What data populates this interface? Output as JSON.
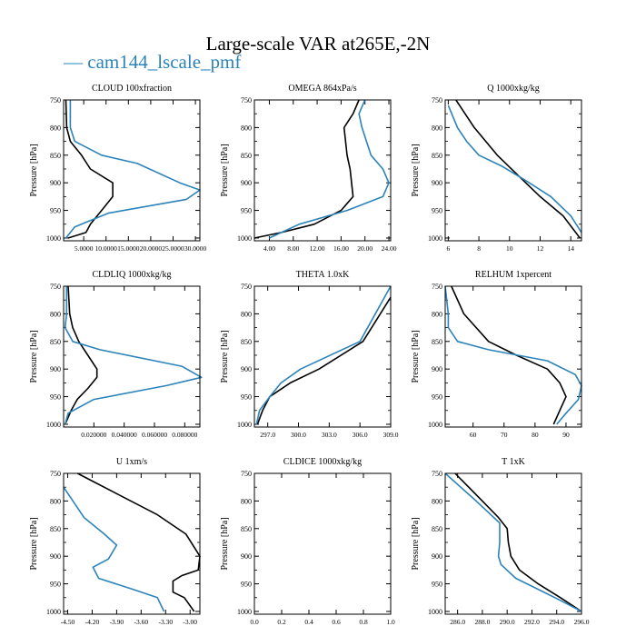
{
  "title": "Large-scale VAR at265E,-2N",
  "legend": {
    "dash": "—",
    "label": "cam144_lscale_pmf"
  },
  "colors": {
    "black_series": "#000000",
    "blue_series": "#2b83ba"
  },
  "chart_data": [
    {
      "type": "line",
      "title": "CLOUD  100xfraction",
      "ylabel": "Pressure [hPa]",
      "yticks": [
        750,
        800,
        850,
        900,
        950,
        1000
      ],
      "ylim": [
        750,
        1005
      ],
      "xlim": [
        0.5,
        31
      ],
      "xticks": [
        5,
        10,
        15,
        20,
        25,
        30
      ],
      "xticklabels": [
        "5.0000",
        "10.0000",
        "15.0000",
        "20.0000",
        "25.0000",
        "30.0000"
      ],
      "series": [
        {
          "color": "black",
          "x": [
            1.0,
            1.2,
            2.0,
            4.5,
            6.5,
            11.5,
            11.5,
            9.0,
            6.5,
            5.5,
            1.5
          ],
          "y": [
            750,
            800,
            825,
            850,
            875,
            900,
            925,
            950,
            975,
            990,
            1000
          ]
        },
        {
          "color": "blue",
          "x": [
            2.0,
            2.0,
            3.0,
            9.0,
            17.0,
            26.5,
            31.0,
            28.0,
            10.5,
            3.0,
            1.0
          ],
          "y": [
            750,
            800,
            825,
            850,
            865,
            900,
            913,
            930,
            955,
            980,
            1000
          ]
        }
      ]
    },
    {
      "type": "line",
      "title": "OMEGA  864xPa/s",
      "ylabel": "Pressure [hPa]",
      "yticks": [
        750,
        800,
        850,
        900,
        950,
        1000
      ],
      "ylim": [
        750,
        1005
      ],
      "xlim": [
        1.5,
        24.3
      ],
      "xticks": [
        4,
        8,
        12,
        16,
        20,
        24
      ],
      "xticklabels": [
        "4.00",
        "8.00",
        "12.00",
        "16.00",
        "20.00",
        "24.00"
      ],
      "series": [
        {
          "color": "black",
          "x": [
            19.0,
            18.0,
            16.5,
            17.0,
            17.5,
            18.0,
            16.0,
            11.5,
            6.0,
            1.5
          ],
          "y": [
            750,
            775,
            800,
            850,
            875,
            925,
            950,
            975,
            990,
            1000
          ]
        },
        {
          "color": "blue",
          "x": [
            20.0,
            19.0,
            19.5,
            21.0,
            23.0,
            24.0,
            23.0,
            17.0,
            9.0,
            4.0
          ],
          "y": [
            750,
            775,
            800,
            850,
            875,
            900,
            925,
            950,
            975,
            1000
          ]
        }
      ]
    },
    {
      "type": "line",
      "title": "Q  1000xkg/kg",
      "ylabel": "Pressure [hPa]",
      "yticks": [
        750,
        800,
        850,
        900,
        950,
        1000
      ],
      "ylim": [
        750,
        1005
      ],
      "xlim": [
        5.8,
        14.7
      ],
      "xticks": [
        6,
        8,
        10,
        12,
        14
      ],
      "xticklabels": [
        "6",
        "8",
        "10",
        "12",
        "14"
      ],
      "series": [
        {
          "color": "black",
          "x": [
            6.5,
            7.7,
            9.2,
            10.5,
            12.0,
            13.5,
            14.6
          ],
          "y": [
            750,
            800,
            850,
            885,
            925,
            960,
            1000
          ]
        },
        {
          "color": "blue",
          "x": [
            6.0,
            6.6,
            7.2,
            8.0,
            9.5,
            11.0,
            12.7,
            14.0,
            14.7
          ],
          "y": [
            760,
            800,
            825,
            850,
            870,
            895,
            925,
            960,
            990
          ]
        }
      ]
    },
    {
      "type": "line",
      "title": "CLDLIQ  1000xkg/kg",
      "ylabel": "Pressure [hPa]",
      "yticks": [
        750,
        800,
        850,
        900,
        950,
        1000
      ],
      "ylim": [
        750,
        1005
      ],
      "xlim": [
        0.0,
        0.09
      ],
      "xticks": [
        0.02,
        0.04,
        0.06,
        0.08
      ],
      "xticklabels": [
        "0.020000",
        "0.040000",
        "0.060000",
        "0.080000"
      ],
      "series": [
        {
          "color": "black",
          "x": [
            0.003,
            0.004,
            0.006,
            0.01,
            0.016,
            0.022,
            0.022,
            0.016,
            0.009,
            0.005,
            0.001
          ],
          "y": [
            750,
            800,
            825,
            850,
            875,
            900,
            915,
            935,
            955,
            975,
            1000
          ]
        },
        {
          "color": "blue",
          "x": [
            0.002,
            0.002,
            0.001,
            0.006,
            0.024,
            0.078,
            0.091,
            0.068,
            0.02,
            0.003,
            0.001
          ],
          "y": [
            750,
            800,
            825,
            850,
            865,
            895,
            915,
            930,
            955,
            980,
            1000
          ]
        }
      ]
    },
    {
      "type": "line",
      "title": "THETA  1.0xK",
      "ylabel": "Pressure [hPa]",
      "yticks": [
        750,
        800,
        850,
        900,
        950,
        1000
      ],
      "ylim": [
        750,
        1005
      ],
      "xlim": [
        295.7,
        309.0
      ],
      "xticks": [
        297,
        300,
        303,
        306,
        309
      ],
      "xticklabels": [
        "297.0",
        "300.0",
        "303.0",
        "306.0",
        "309.0"
      ],
      "series": [
        {
          "color": "black",
          "x": [
            309.0,
            306.3,
            302.0,
            299.2,
            297.2,
            296.5,
            296.0
          ],
          "y": [
            770,
            850,
            900,
            925,
            950,
            975,
            1000
          ]
        },
        {
          "color": "blue",
          "x": [
            309.0,
            306.0,
            300.2,
            298.3,
            297.2,
            296.2,
            295.9
          ],
          "y": [
            750,
            850,
            900,
            925,
            950,
            975,
            1000
          ]
        }
      ]
    },
    {
      "type": "line",
      "title": "RELHUM  1xpercent",
      "ylabel": "Pressure [hPa]",
      "yticks": [
        750,
        800,
        850,
        900,
        950,
        1000
      ],
      "ylim": [
        750,
        1005
      ],
      "xlim": [
        51,
        95
      ],
      "xticks": [
        60,
        70,
        80,
        90
      ],
      "xticklabels": [
        "60",
        "70",
        "80",
        "90"
      ],
      "series": [
        {
          "color": "black",
          "x": [
            53,
            57,
            65,
            74,
            84,
            88,
            90,
            88,
            86
          ],
          "y": [
            750,
            800,
            850,
            875,
            900,
            925,
            950,
            975,
            1000
          ]
        },
        {
          "color": "blue",
          "x": [
            51,
            52,
            52,
            55,
            65,
            84,
            93,
            95,
            94,
            90,
            87
          ],
          "y": [
            750,
            800,
            825,
            850,
            865,
            885,
            910,
            930,
            955,
            980,
            1000
          ]
        }
      ]
    },
    {
      "type": "line",
      "title": "U  1xm/s",
      "ylabel": "Pressure [hPa]",
      "yticks": [
        750,
        800,
        850,
        900,
        950,
        1000
      ],
      "ylim": [
        750,
        1005
      ],
      "xlim": [
        -4.55,
        -2.88
      ],
      "xticks": [
        -4.5,
        -4.2,
        -3.9,
        -3.6,
        -3.3,
        -3.0
      ],
      "xticklabels": [
        "-4.50",
        "-4.20",
        "-3.90",
        "-3.60",
        "-3.30",
        "-3.00"
      ],
      "series": [
        {
          "color": "black",
          "x": [
            -4.38,
            -3.4,
            -3.05,
            -2.88,
            -2.9,
            -3.1,
            -3.21,
            -3.21,
            -3.07,
            -2.95
          ],
          "y": [
            750,
            825,
            860,
            900,
            925,
            935,
            945,
            965,
            975,
            1000
          ]
        },
        {
          "color": "blue",
          "x": [
            -4.55,
            -4.3,
            -4.05,
            -3.9,
            -4.0,
            -4.19,
            -4.12,
            -3.7,
            -3.4,
            -3.32
          ],
          "y": [
            775,
            830,
            860,
            880,
            905,
            920,
            940,
            960,
            975,
            1000
          ]
        }
      ]
    },
    {
      "type": "line",
      "title": "CLDICE  1000xkg/kg",
      "ylabel": "Pressure [hPa]",
      "yticks": [
        750,
        800,
        850,
        900,
        950,
        1000
      ],
      "ylim": [
        750,
        1005
      ],
      "xlim": [
        0.0,
        1.0
      ],
      "xticks": [
        0.0,
        0.2,
        0.4,
        0.6,
        0.8,
        1.0
      ],
      "xticklabels": [
        "0.0",
        "0.2",
        "0.4",
        "0.6",
        "0.8",
        "1.0"
      ],
      "series": []
    },
    {
      "type": "line",
      "title": "T  1xK",
      "ylabel": "Pressure [hPa]",
      "yticks": [
        750,
        800,
        850,
        900,
        950,
        1000
      ],
      "ylim": [
        750,
        1005
      ],
      "xlim": [
        285.0,
        296.0
      ],
      "xticks": [
        286,
        288,
        290,
        292,
        294,
        296
      ],
      "xticklabels": [
        "286.0",
        "288.0",
        "290.0",
        "292.0",
        "294.0",
        "296.0"
      ],
      "series": [
        {
          "color": "black",
          "x": [
            285.8,
            288.0,
            289.3,
            290.0,
            290.1,
            290.3,
            291.0,
            292.5,
            294.3,
            296.0
          ],
          "y": [
            750,
            800,
            830,
            850,
            875,
            900,
            925,
            950,
            975,
            1000
          ]
        },
        {
          "color": "blue",
          "x": [
            285.0,
            287.5,
            289.4,
            289.4,
            289.3,
            289.5,
            290.7,
            292.5,
            294.3,
            296.0
          ],
          "y": [
            750,
            800,
            840,
            875,
            900,
            915,
            940,
            960,
            980,
            1000
          ]
        }
      ]
    }
  ]
}
